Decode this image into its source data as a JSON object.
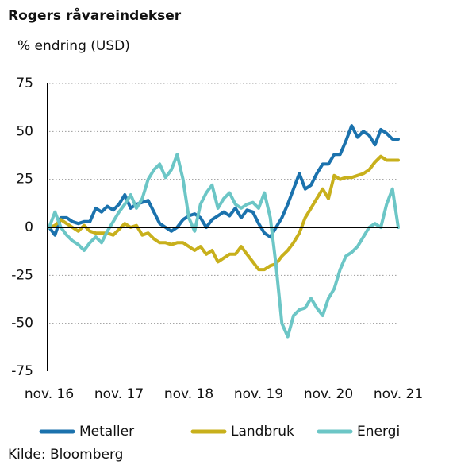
{
  "chart_data": {
    "type": "line",
    "title": "Rogers råvareindekser",
    "subtitle": "% endring (USD)",
    "source": "Kilde: Bloomberg",
    "x": [
      0,
      1,
      2,
      3,
      4,
      5,
      6,
      7,
      8,
      9,
      10,
      11,
      12,
      13,
      14,
      15,
      16,
      17,
      18,
      19,
      20,
      21,
      22,
      23,
      24,
      25,
      26,
      27,
      28,
      29,
      30,
      31,
      32,
      33,
      34,
      35,
      36,
      37,
      38,
      39,
      40,
      41,
      42,
      43,
      44,
      45,
      46,
      47,
      48,
      49,
      50,
      51,
      52,
      53,
      54,
      55,
      56,
      57,
      58,
      59,
      60
    ],
    "xlim": [
      0,
      60
    ],
    "xticks": [
      {
        "value": 0,
        "label": "nov. 16"
      },
      {
        "value": 12,
        "label": "nov. 17"
      },
      {
        "value": 24,
        "label": "nov. 18"
      },
      {
        "value": 36,
        "label": "nov. 19"
      },
      {
        "value": 48,
        "label": "nov. 20"
      },
      {
        "value": 60,
        "label": "nov. 21"
      }
    ],
    "ylim": [
      -75,
      75
    ],
    "yticks": [
      -75,
      -50,
      -25,
      0,
      25,
      50,
      75
    ],
    "grid": true,
    "legend": "bottom",
    "series": [
      {
        "name": "Metaller",
        "color": "#1b72ad",
        "values": [
          0,
          -4,
          5,
          5,
          3,
          2,
          3,
          3,
          10,
          8,
          11,
          9,
          12,
          17,
          10,
          12,
          13,
          14,
          8,
          2,
          0,
          -2,
          0,
          4,
          6,
          7,
          5,
          0,
          4,
          6,
          8,
          6,
          10,
          5,
          9,
          8,
          2,
          -3,
          -5,
          0,
          5,
          12,
          20,
          28,
          20,
          22,
          28,
          33,
          33,
          38,
          38,
          45,
          53,
          47,
          50,
          48,
          43,
          51,
          49,
          46,
          46
        ]
      },
      {
        "name": "Landbruk",
        "color": "#c8b01c",
        "values": [
          0,
          1,
          4,
          2,
          0,
          -2,
          1,
          -2,
          -3,
          -3,
          -3,
          -4,
          -1,
          2,
          0,
          1,
          -4,
          -3,
          -6,
          -8,
          -8,
          -9,
          -8,
          -8,
          -10,
          -12,
          -10,
          -14,
          -12,
          -18,
          -16,
          -14,
          -14,
          -10,
          -14,
          -18,
          -22,
          -22,
          -20,
          -19,
          -15,
          -12,
          -8,
          -3,
          5,
          10,
          15,
          20,
          15,
          27,
          25,
          26,
          26,
          27,
          28,
          30,
          34,
          37,
          35,
          35,
          35
        ]
      },
      {
        "name": "Energi",
        "color": "#6cc6c6",
        "values": [
          0,
          8,
          0,
          -4,
          -7,
          -9,
          -12,
          -8,
          -5,
          -8,
          -2,
          3,
          8,
          12,
          17,
          10,
          15,
          25,
          30,
          33,
          26,
          30,
          38,
          25,
          5,
          -2,
          12,
          18,
          22,
          10,
          15,
          18,
          12,
          10,
          12,
          13,
          10,
          18,
          5,
          -20,
          -50,
          -57,
          -46,
          -43,
          -42,
          -37,
          -42,
          -46,
          -37,
          -32,
          -22,
          -15,
          -13,
          -10,
          -5,
          0,
          2,
          0,
          12,
          20,
          0
        ]
      }
    ]
  }
}
